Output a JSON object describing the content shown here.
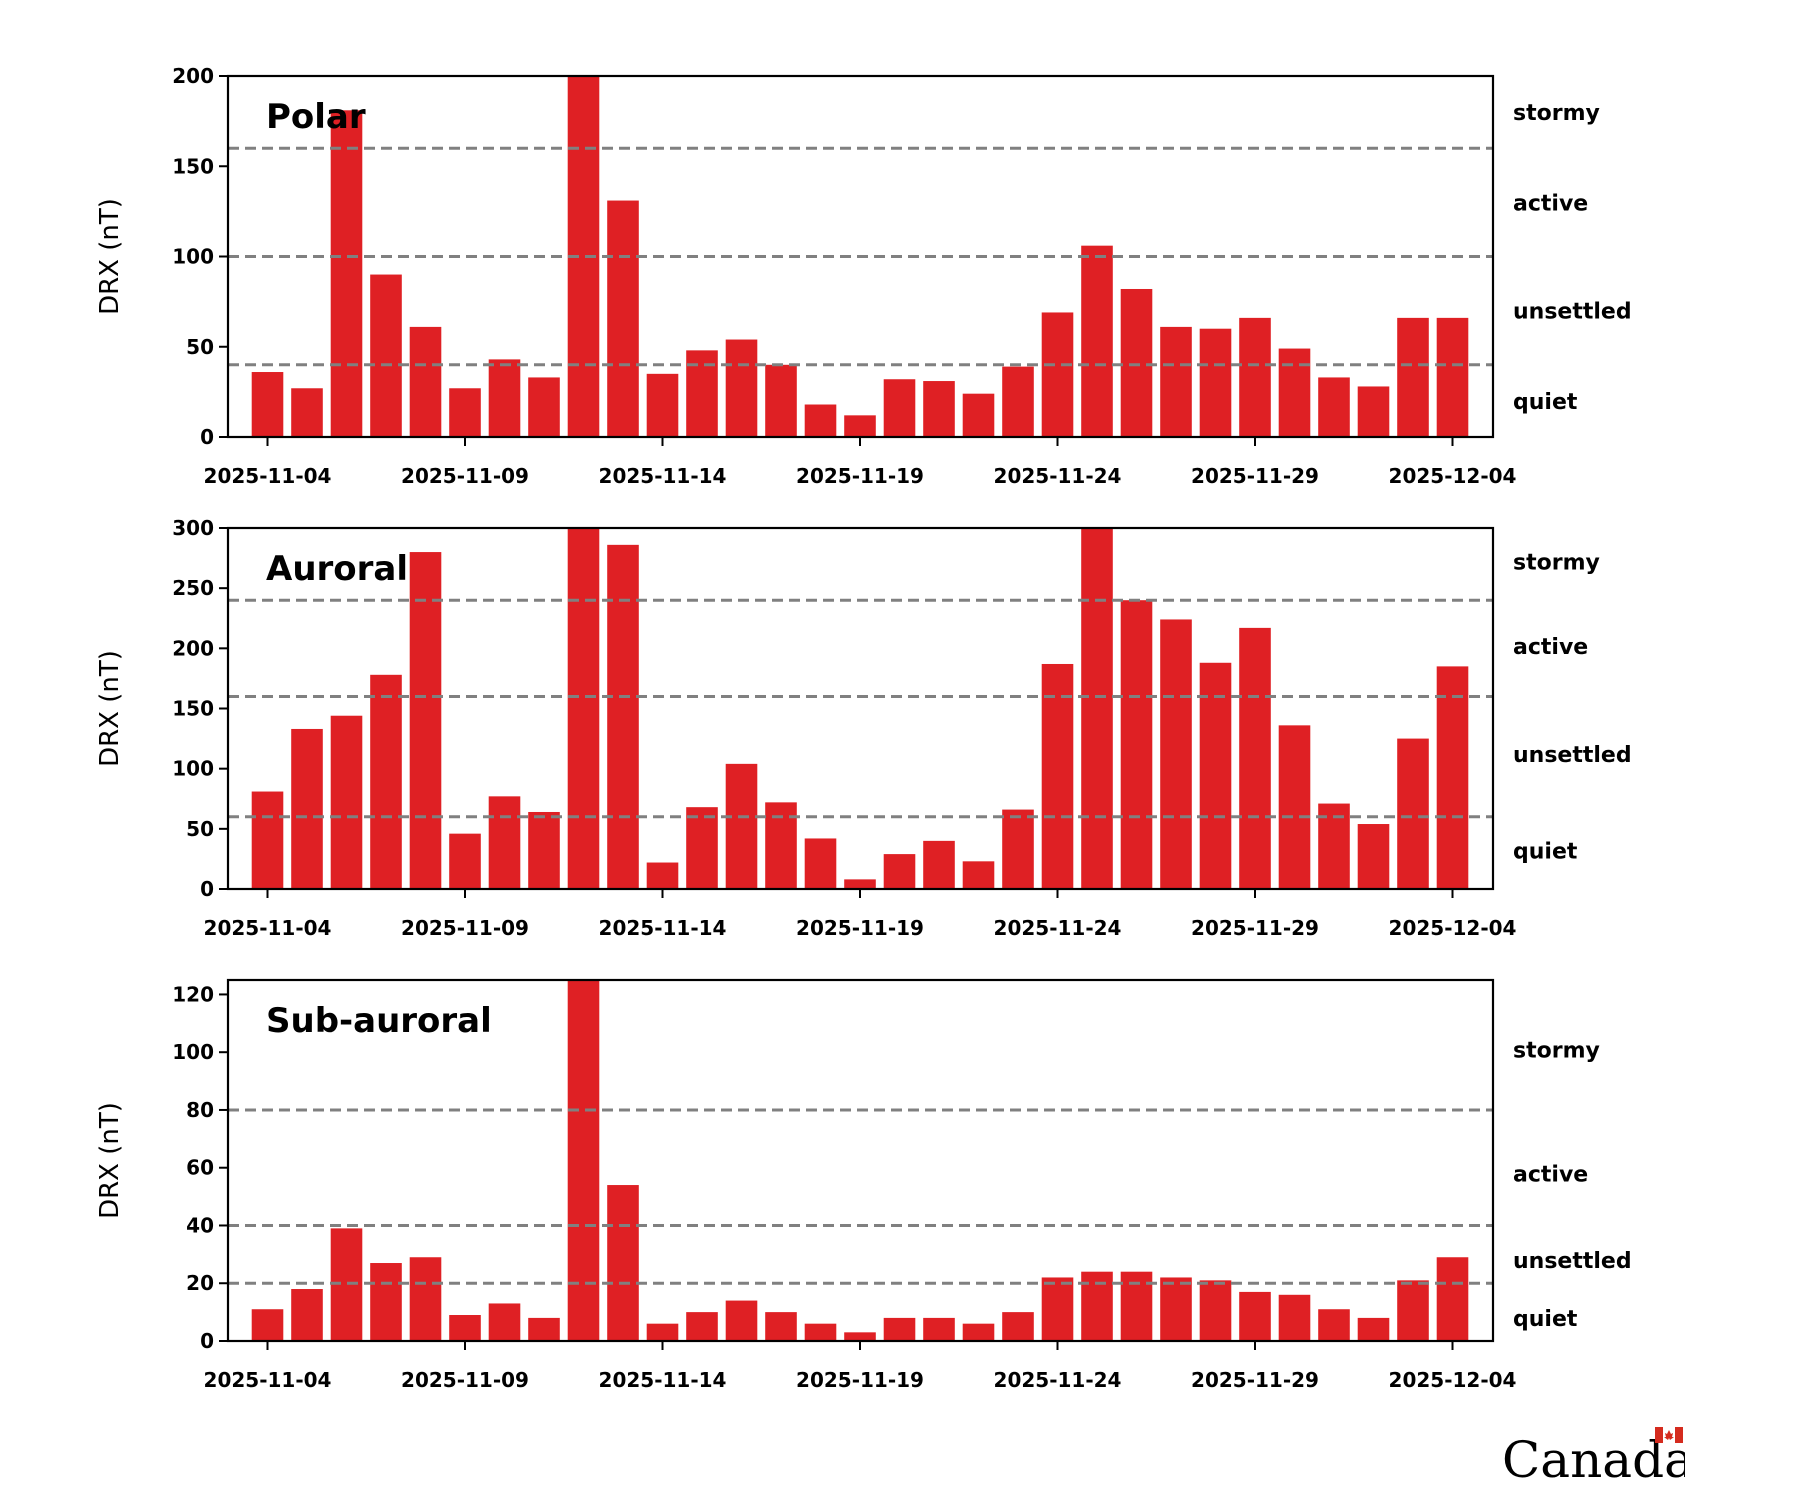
{
  "chart_data": [
    {
      "type": "bar",
      "title": "Polar",
      "xlabel": "",
      "ylabel": "DRX (nT)",
      "ylim": [
        0,
        200
      ],
      "yticks": [
        0,
        50,
        100,
        150,
        200
      ],
      "color": "#df2024",
      "categories": [
        "2025-11-04",
        "2025-11-05",
        "2025-11-06",
        "2025-11-07",
        "2025-11-08",
        "2025-11-09",
        "2025-11-10",
        "2025-11-11",
        "2025-11-12",
        "2025-11-13",
        "2025-11-14",
        "2025-11-15",
        "2025-11-16",
        "2025-11-17",
        "2025-11-18",
        "2025-11-19",
        "2025-11-20",
        "2025-11-21",
        "2025-11-22",
        "2025-11-23",
        "2025-11-24",
        "2025-11-25",
        "2025-11-26",
        "2025-11-27",
        "2025-11-28",
        "2025-11-29",
        "2025-11-30",
        "2025-12-01",
        "2025-12-02",
        "2025-12-03",
        "2025-12-04"
      ],
      "values": [
        36,
        27,
        181,
        90,
        61,
        27,
        43,
        33,
        200,
        131,
        35,
        48,
        54,
        40,
        18,
        12,
        32,
        31,
        24,
        39,
        69,
        106,
        82,
        61,
        60,
        66,
        49,
        33,
        28,
        66,
        66
      ],
      "xtick_labels": [
        "2025-11-04",
        "2025-11-09",
        "2025-11-14",
        "2025-11-19",
        "2025-11-24",
        "2025-11-29",
        "2025-12-04"
      ],
      "xtick_days": [
        0,
        5,
        10,
        15,
        20,
        25,
        30
      ],
      "thresholds": [
        40,
        100,
        160
      ],
      "levels": [
        {
          "label": "stormy",
          "value": 180
        },
        {
          "label": "active",
          "value": 130
        },
        {
          "label": "unsettled",
          "value": 70
        },
        {
          "label": "quiet",
          "value": 20
        }
      ]
    },
    {
      "type": "bar",
      "title": "Auroral",
      "xlabel": "",
      "ylabel": "DRX (nT)",
      "ylim": [
        0,
        300
      ],
      "yticks": [
        0,
        50,
        100,
        150,
        200,
        250,
        300
      ],
      "color": "#df2024",
      "categories": [
        "2025-11-04",
        "2025-11-05",
        "2025-11-06",
        "2025-11-07",
        "2025-11-08",
        "2025-11-09",
        "2025-11-10",
        "2025-11-11",
        "2025-11-12",
        "2025-11-13",
        "2025-11-14",
        "2025-11-15",
        "2025-11-16",
        "2025-11-17",
        "2025-11-18",
        "2025-11-19",
        "2025-11-20",
        "2025-11-21",
        "2025-11-22",
        "2025-11-23",
        "2025-11-24",
        "2025-11-25",
        "2025-11-26",
        "2025-11-27",
        "2025-11-28",
        "2025-11-29",
        "2025-11-30",
        "2025-12-01",
        "2025-12-02",
        "2025-12-03",
        "2025-12-04"
      ],
      "values": [
        81,
        133,
        144,
        178,
        280,
        46,
        77,
        64,
        300,
        286,
        22,
        68,
        104,
        72,
        42,
        8,
        29,
        40,
        23,
        66,
        187,
        300,
        240,
        224,
        188,
        217,
        136,
        71,
        54,
        125,
        185
      ],
      "xtick_labels": [
        "2025-11-04",
        "2025-11-09",
        "2025-11-14",
        "2025-11-19",
        "2025-11-24",
        "2025-11-29",
        "2025-12-04"
      ],
      "xtick_days": [
        0,
        5,
        10,
        15,
        20,
        25,
        30
      ],
      "thresholds": [
        60,
        160,
        240
      ],
      "levels": [
        {
          "label": "stormy",
          "value": 272
        },
        {
          "label": "active",
          "value": 202
        },
        {
          "label": "unsettled",
          "value": 112
        },
        {
          "label": "quiet",
          "value": 32
        }
      ]
    },
    {
      "type": "bar",
      "title": "Sub-auroral",
      "xlabel": "",
      "ylabel": "DRX (nT)",
      "ylim": [
        0,
        125
      ],
      "yticks": [
        0,
        20,
        40,
        60,
        80,
        100,
        120
      ],
      "color": "#df2024",
      "categories": [
        "2025-11-04",
        "2025-11-05",
        "2025-11-06",
        "2025-11-07",
        "2025-11-08",
        "2025-11-09",
        "2025-11-10",
        "2025-11-11",
        "2025-11-12",
        "2025-11-13",
        "2025-11-14",
        "2025-11-15",
        "2025-11-16",
        "2025-11-17",
        "2025-11-18",
        "2025-11-19",
        "2025-11-20",
        "2025-11-21",
        "2025-11-22",
        "2025-11-23",
        "2025-11-24",
        "2025-11-25",
        "2025-11-26",
        "2025-11-27",
        "2025-11-28",
        "2025-11-29",
        "2025-11-30",
        "2025-12-01",
        "2025-12-02",
        "2025-12-03",
        "2025-12-04"
      ],
      "values": [
        11,
        18,
        39,
        27,
        29,
        9,
        13,
        8,
        125,
        54,
        6,
        10,
        14,
        10,
        6,
        3,
        8,
        8,
        6,
        10,
        22,
        24,
        24,
        22,
        21,
        17,
        16,
        11,
        8,
        21,
        29
      ],
      "xtick_labels": [
        "2025-11-04",
        "2025-11-09",
        "2025-11-14",
        "2025-11-19",
        "2025-11-24",
        "2025-11-29",
        "2025-12-04"
      ],
      "xtick_days": [
        0,
        5,
        10,
        15,
        20,
        25,
        30
      ],
      "thresholds": [
        20,
        40,
        80
      ],
      "levels": [
        {
          "label": "stormy",
          "value": 101
        },
        {
          "label": "active",
          "value": 58
        },
        {
          "label": "unsettled",
          "value": 28
        },
        {
          "label": "quiet",
          "value": 8
        }
      ]
    }
  ],
  "logo": {
    "wordmark": "Canada"
  },
  "colors": {
    "bar": "#df2024",
    "threshold": "#808080",
    "axis": "#000000"
  }
}
